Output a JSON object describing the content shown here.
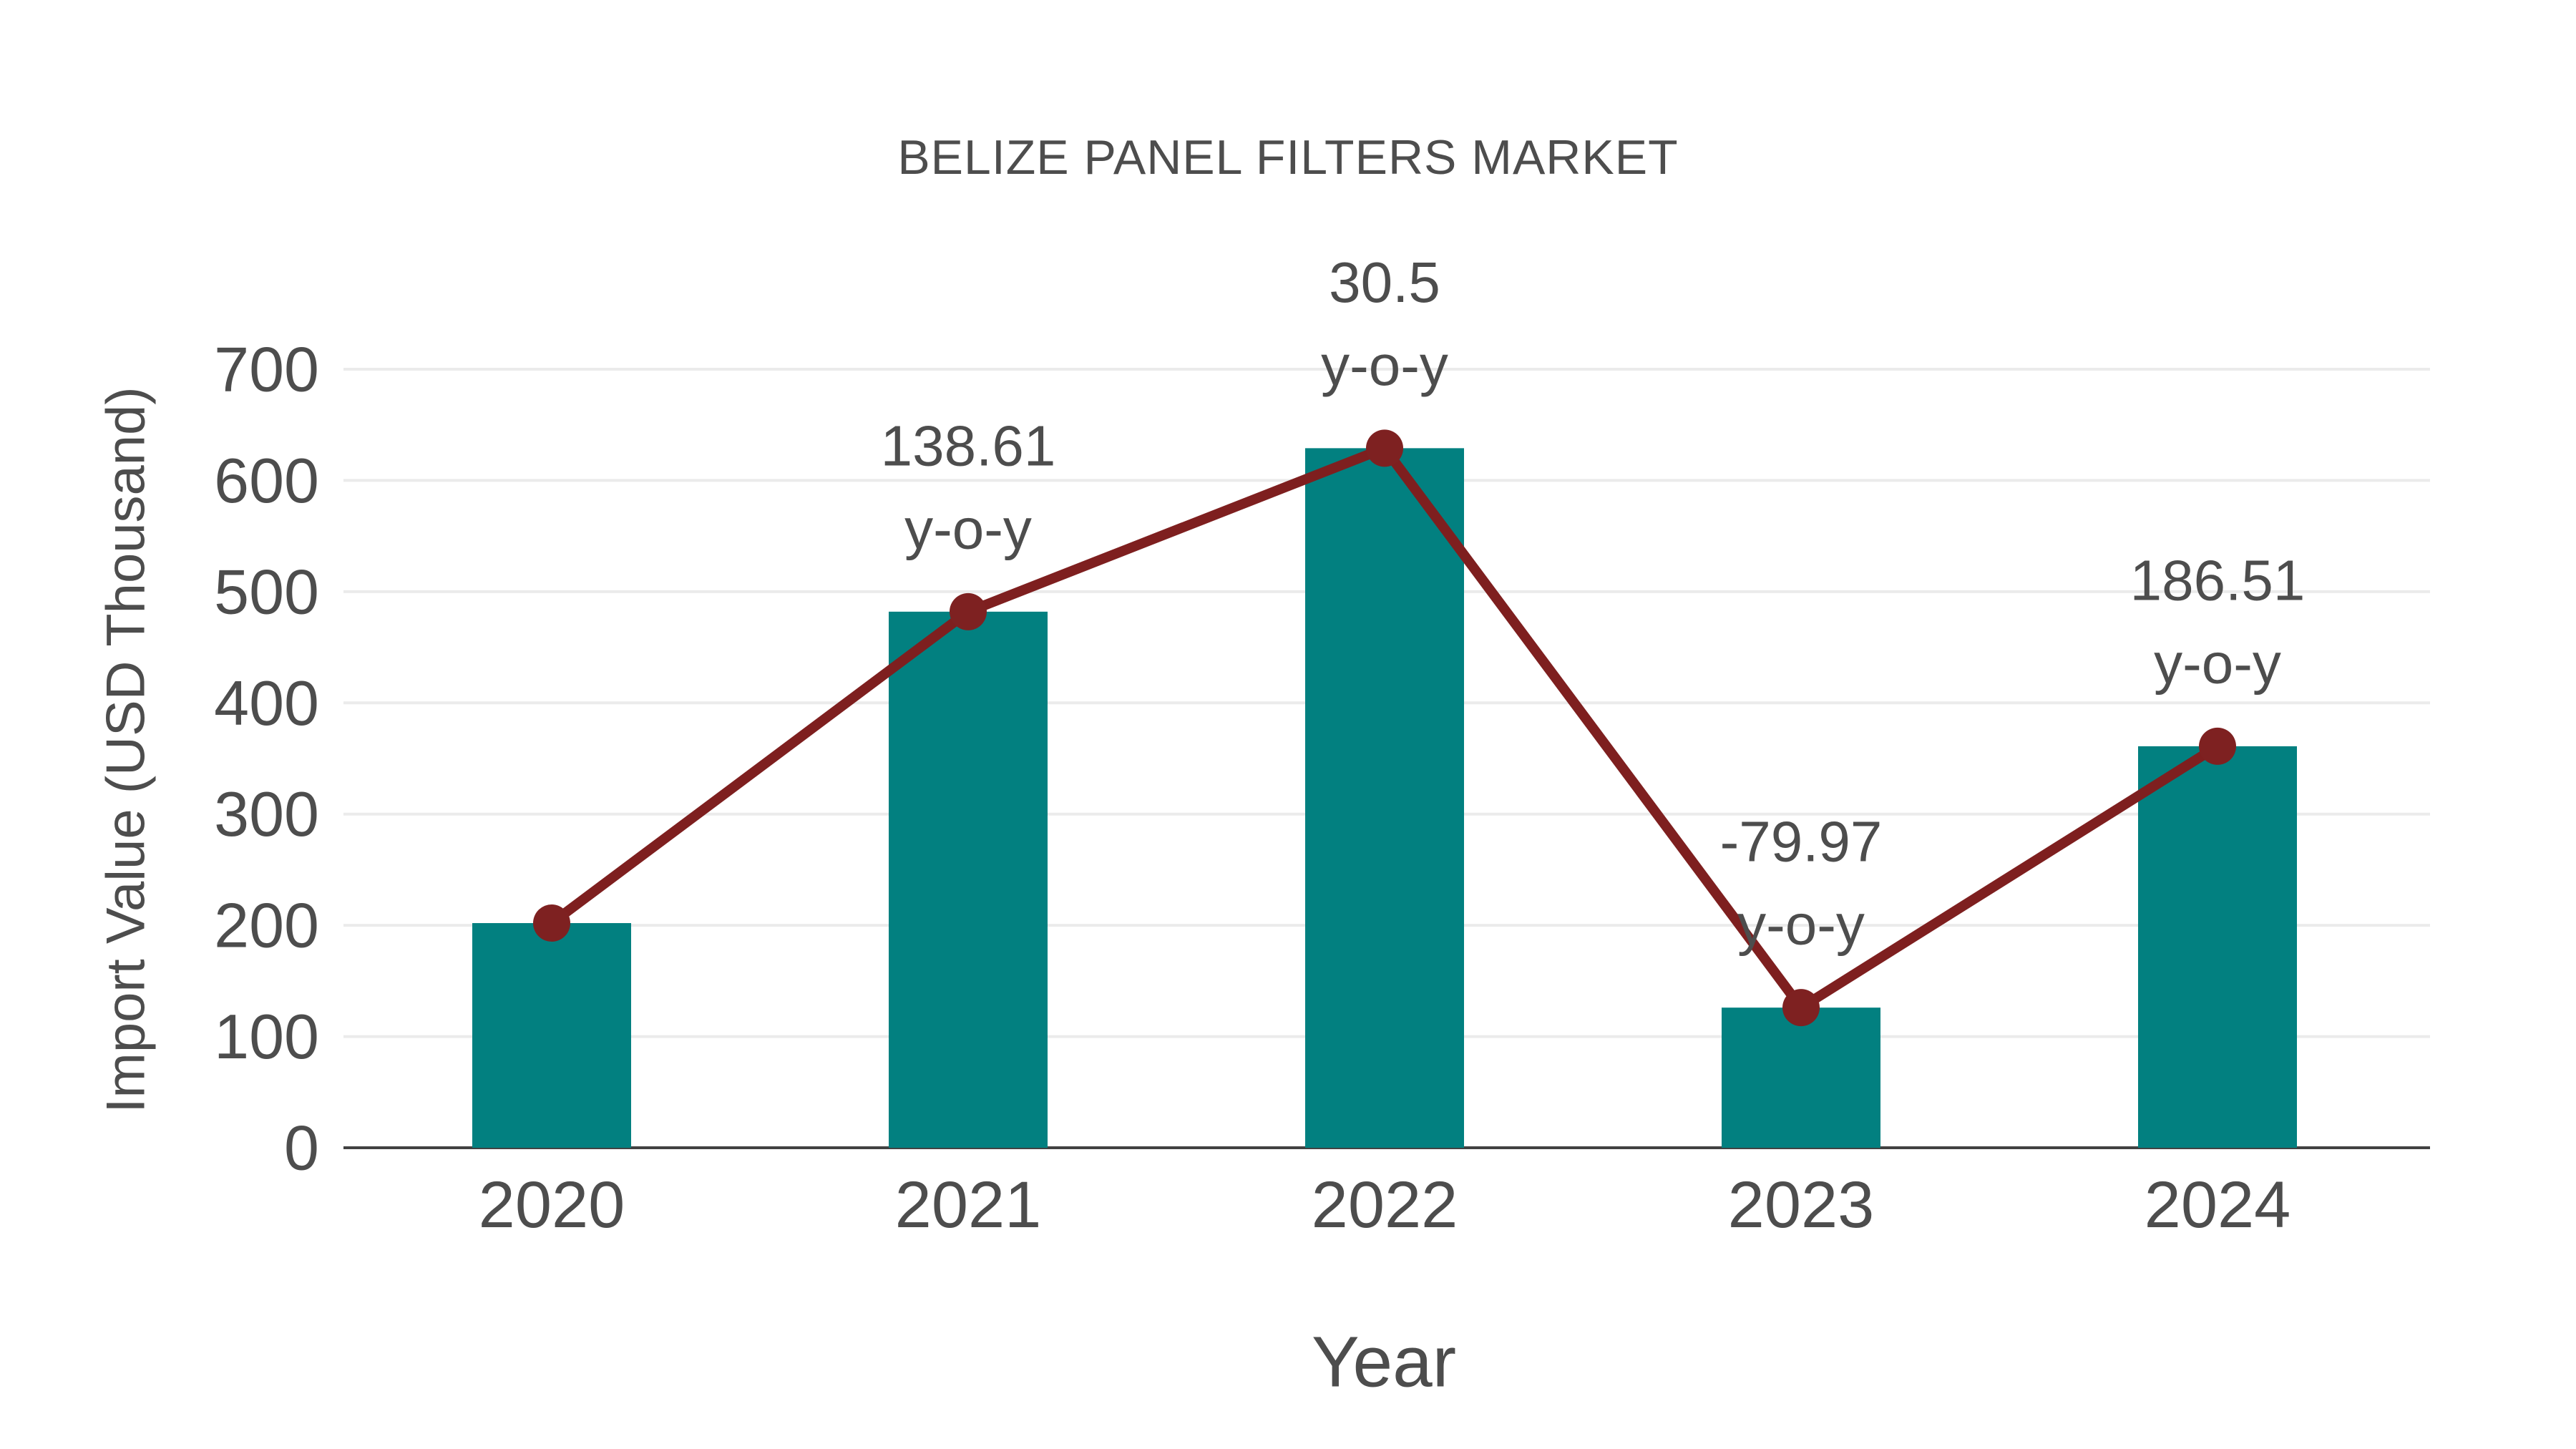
{
  "chart_data": {
    "type": "bar",
    "title": "BELIZE PANEL FILTERS MARKET",
    "xlabel": "Year",
    "ylabel": "Import Value (USD Thousand)",
    "categories": [
      "2020",
      "2021",
      "2022",
      "2023",
      "2024"
    ],
    "series": [
      {
        "name": "Import Value (USD Thousand)",
        "type": "bar",
        "values": [
          202,
          482,
          629,
          126,
          361
        ],
        "color": "#028080"
      },
      {
        "name": "Y-o-Y growth (%)",
        "type": "line",
        "values": [
          202,
          482,
          629,
          126,
          361
        ],
        "point_labels": [
          null,
          "138.61",
          "30.5",
          "-79.97",
          "186.51"
        ],
        "label_suffix": "y-o-y",
        "color": "#7e1f1f",
        "marker_color": "#7e2121"
      }
    ],
    "ylim": [
      0,
      700
    ],
    "yticks": [
      0,
      100,
      200,
      300,
      400,
      500,
      600,
      700
    ],
    "grid": true,
    "legend_position": "none",
    "colors": {
      "text": "#4d4d4d",
      "grid": "#ebebeb",
      "axis": "#424242",
      "background": "#ffffff"
    }
  }
}
